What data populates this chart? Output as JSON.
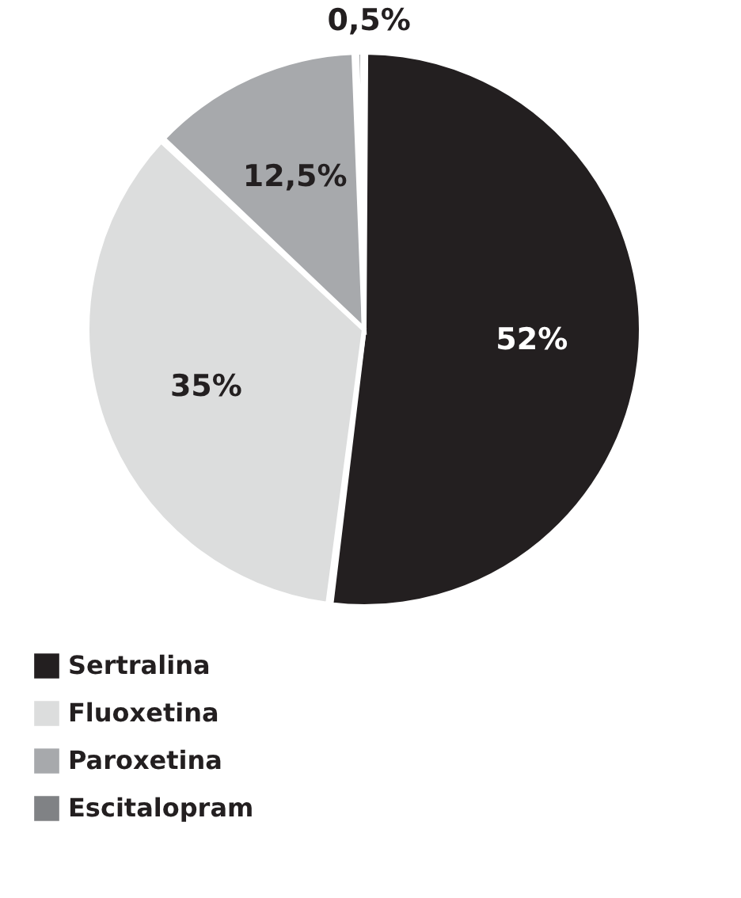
{
  "chart_data": {
    "type": "pie",
    "categories": [
      "Sertralina",
      "Fluoxetina",
      "Paroxetina",
      "Escitalopram"
    ],
    "values": [
      52,
      35,
      12.5,
      0.5
    ],
    "colors": [
      "#231f20",
      "#dcdddd",
      "#a7a9ac",
      "#808285"
    ],
    "value_labels": [
      "52%",
      "35%",
      "12,5%",
      "0,5%"
    ],
    "legend": "bottom"
  }
}
